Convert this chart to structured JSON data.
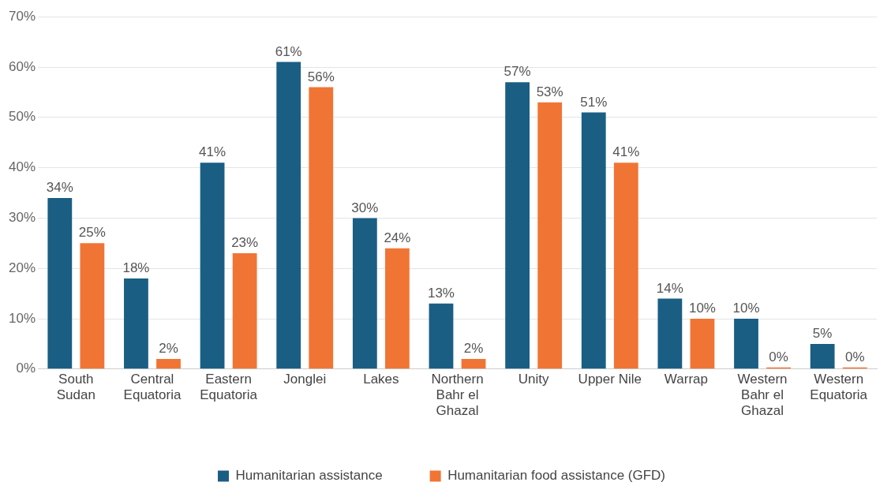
{
  "chart_data": {
    "type": "bar",
    "categories": [
      "South Sudan",
      "Central Equatoria",
      "Eastern Equatoria",
      "Jonglei",
      "Lakes",
      "Northern Bahr el Ghazal",
      "Unity",
      "Upper Nile",
      "Warrap",
      "Western Bahr el Ghazal",
      "Western Equatoria"
    ],
    "series": [
      {
        "name": "Humanitarian assistance",
        "color": "#1a5e84",
        "values": [
          34,
          18,
          41,
          61,
          30,
          13,
          57,
          51,
          14,
          10,
          5
        ],
        "value_labels": [
          "34%",
          "18%",
          "41%",
          "61%",
          "30%",
          "13%",
          "57%",
          "51%",
          "14%",
          "10%",
          "5%"
        ]
      },
      {
        "name": "Humanitarian food assistance (GFD)",
        "color": "#f07535",
        "values": [
          25,
          2,
          23,
          56,
          24,
          2,
          53,
          41,
          10,
          0,
          0
        ],
        "value_labels": [
          "25%",
          "2%",
          "23%",
          "56%",
          "24%",
          "2%",
          "53%",
          "41%",
          "10%",
          "0%",
          "0%"
        ]
      }
    ],
    "ylim": [
      0,
      70
    ],
    "yticks": [
      {
        "value": 0,
        "label": "0%"
      },
      {
        "value": 10,
        "label": "10%"
      },
      {
        "value": 20,
        "label": "20%"
      },
      {
        "value": 30,
        "label": "30%"
      },
      {
        "value": 40,
        "label": "40%"
      },
      {
        "value": 50,
        "label": "50%"
      },
      {
        "value": 60,
        "label": "60%"
      },
      {
        "value": 70,
        "label": "70%"
      }
    ],
    "grid": "y",
    "legend": "bottom"
  }
}
